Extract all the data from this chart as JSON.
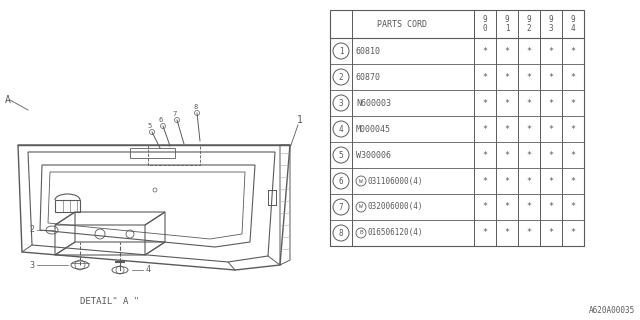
{
  "bg_color": "#ffffff",
  "line_color": "#5a5a5a",
  "rows": [
    [
      "1",
      "60810",
      "*",
      "*",
      "*",
      "*",
      "*"
    ],
    [
      "2",
      "60870",
      "*",
      "*",
      "*",
      "*",
      "*"
    ],
    [
      "3",
      "N600003",
      "*",
      "*",
      "*",
      "*",
      "*"
    ],
    [
      "4",
      "M000045",
      "*",
      "*",
      "*",
      "*",
      "*"
    ],
    [
      "5",
      "W300006",
      "*",
      "*",
      "*",
      "*",
      "*"
    ],
    [
      "6",
      "W",
      "031106000(4)",
      "*",
      "*",
      "*",
      "*",
      "*"
    ],
    [
      "7",
      "W",
      "032006000(4)",
      "*",
      "*",
      "*",
      "*",
      "*"
    ],
    [
      "8",
      "B",
      "016506120(4)",
      "*",
      "*",
      "*",
      "*",
      "*"
    ]
  ],
  "year_cols": [
    "9\n0",
    "9\n1",
    "9\n2",
    "9\n3",
    "9\n4"
  ],
  "footer_text": "A620A00035",
  "detail_label": "DETAIL\" A \"",
  "font_size_table": 6.0,
  "label_A": "A",
  "label_1": "1"
}
